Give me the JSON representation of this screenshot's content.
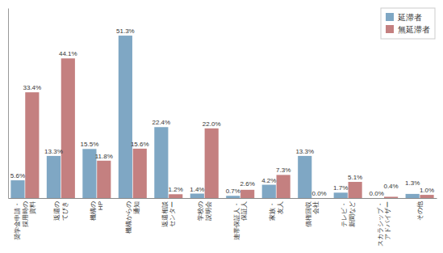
{
  "chart_data": {
    "type": "bar",
    "categories": [
      "奨学金申請・\n採用時の\n資料",
      "返還の\nてびき",
      "機構の\nHP",
      "機構からの\n通知",
      "返還相談\nセンター",
      "学校の\n説明会",
      "連帯保証人・\n保証人",
      "家族・\n友人",
      "債権回収\n会社",
      "テレビ・\n新聞など",
      "スカラシップ・\nアドバイザー",
      "その他"
    ],
    "series": [
      {
        "name": "延滞者",
        "color": "#7FA7C4",
        "values": [
          5.6,
          13.3,
          15.5,
          51.3,
          22.4,
          1.4,
          0.7,
          4.2,
          13.3,
          1.7,
          0.0,
          1.3
        ],
        "value_labels": [
          "5.6%",
          "13.3%",
          "15.5%",
          "51.3%",
          "22.4%",
          "1.4%",
          "0.7%",
          "4.2%",
          "13.3%",
          "1.7%",
          "0.0%",
          "1.3%"
        ]
      },
      {
        "name": "無延滞者",
        "color": "#C48080",
        "values": [
          33.4,
          44.1,
          11.8,
          15.6,
          1.2,
          22.0,
          2.6,
          7.3,
          0.0,
          5.1,
          0.4,
          1.0
        ],
        "value_labels": [
          "33.4%",
          "44.1%",
          "11.8%",
          "15.6%",
          "1.2%",
          "22.0%",
          "2.6%",
          "7.3%",
          "0.0%",
          "5.1%",
          "0.4%",
          "1.0%"
        ]
      }
    ],
    "ylim": [
      0,
      60
    ],
    "data_labels": true,
    "tick_labels": "x",
    "legend": "upper right"
  }
}
